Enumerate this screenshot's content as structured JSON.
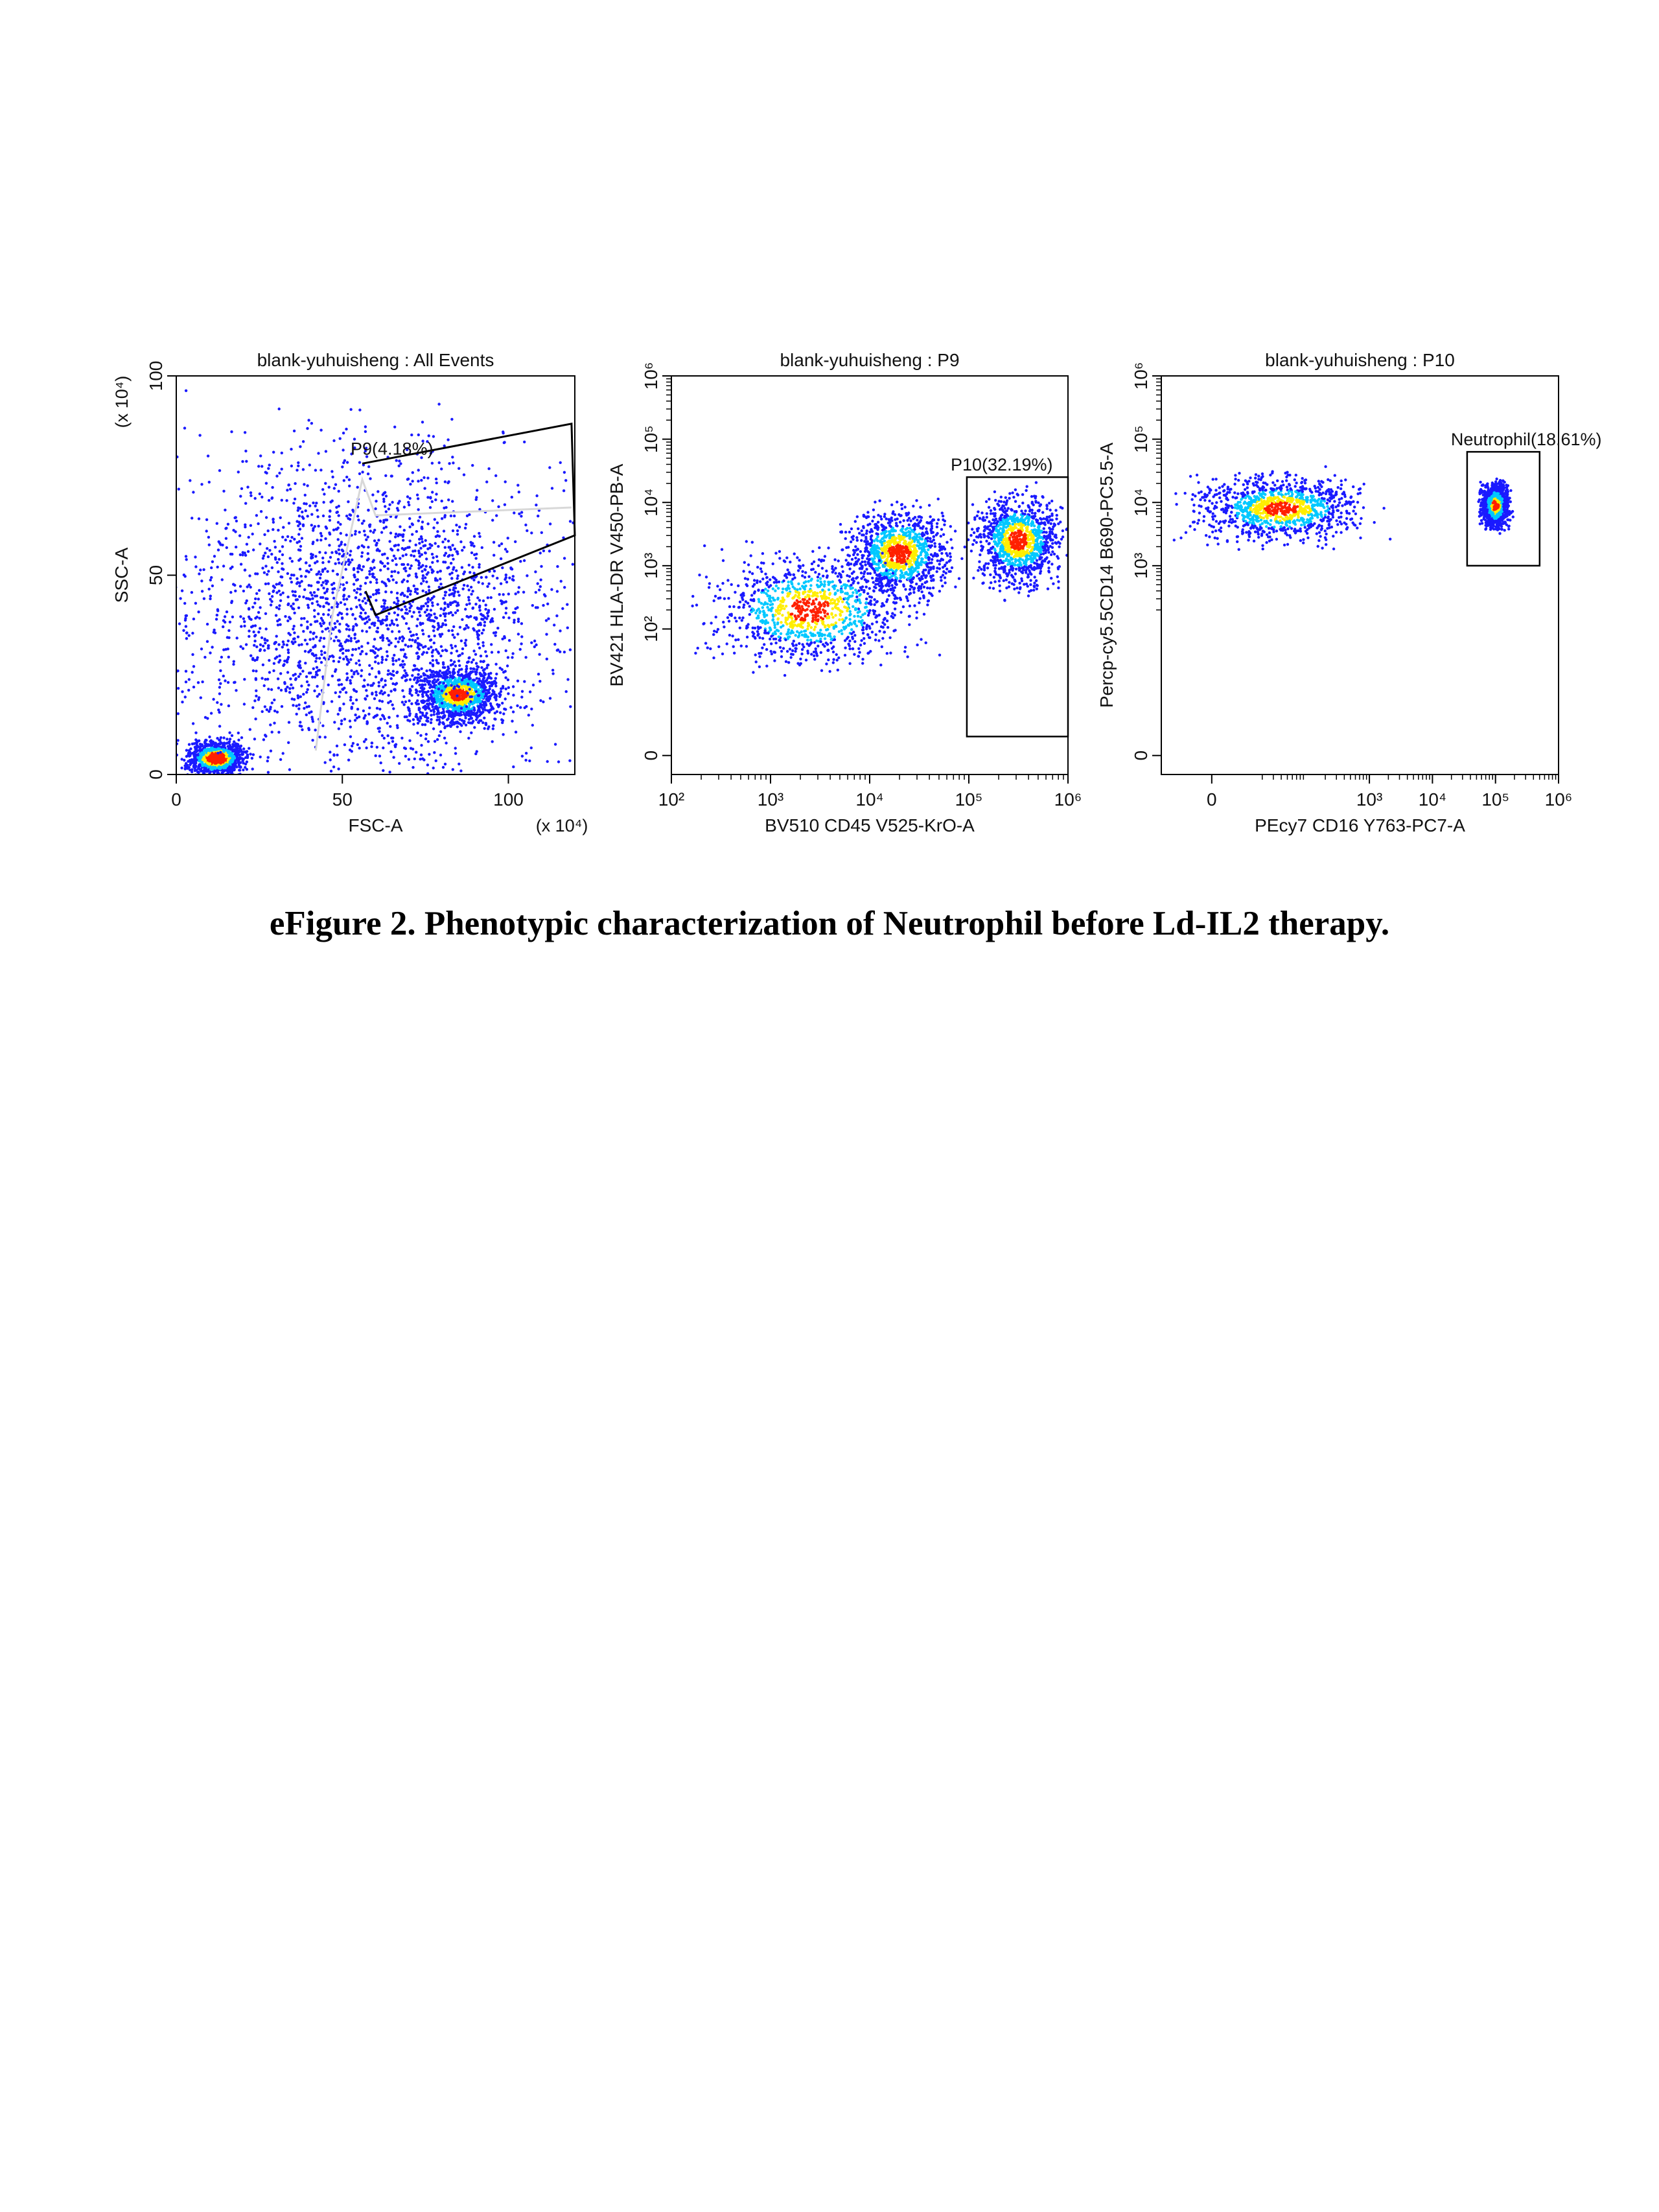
{
  "caption": "eFigure 2. Phenotypic characterization of Neutrophil before Ld-IL2 therapy.",
  "colors": {
    "density_low": "#1a1aff",
    "density_mid": "#00c8ff",
    "density_high": "#ffee00",
    "density_peak": "#ff2000",
    "gate": "#000000"
  },
  "chart_data": [
    {
      "type": "scatter",
      "title": "blank-yuhuisheng : All Events",
      "xlabel": "FSC-A",
      "ylabel": "SSC-A",
      "x_scale": "linear",
      "y_scale": "linear",
      "xlim": [
        0,
        120
      ],
      "ylim": [
        0,
        100
      ],
      "x_ticks": [
        "0",
        "50",
        "100"
      ],
      "x_tick_values": [
        0,
        50,
        100
      ],
      "y_ticks": [
        "0",
        "50",
        "100"
      ],
      "y_tick_values": [
        0,
        50,
        100
      ],
      "x_multiplier": "(x 10⁴)",
      "y_multiplier": "(x 10⁴)",
      "gates": [
        {
          "label": "P9(4.18%)",
          "shape": "polygon",
          "points": [
            [
              56,
              78
            ],
            [
              119,
              88
            ],
            [
              120,
              60
            ],
            [
              60,
              40
            ],
            [
              57,
              46
            ]
          ]
        },
        {
          "label": "",
          "shape": "polygon",
          "points": [
            [
              42,
              6
            ],
            [
              47,
              40
            ],
            [
              56,
              74
            ],
            [
              60,
              65
            ],
            [
              119,
              67
            ]
          ]
        }
      ],
      "populations": [
        {
          "name": "",
          "center": [
            12,
            4
          ],
          "spread": [
            6,
            3
          ],
          "peak": true
        },
        {
          "name": "",
          "center": [
            85,
            20
          ],
          "spread": [
            9,
            5
          ]
        },
        {
          "name": "",
          "center": [
            60,
            40
          ],
          "spread": [
            40,
            30
          ]
        }
      ]
    },
    {
      "type": "scatter",
      "title": "blank-yuhuisheng : P9",
      "xlabel": "BV510 CD45 V525-KrO-A",
      "ylabel": "BV421 HLA-DR V450-PB-A",
      "x_scale": "log",
      "y_scale": "log",
      "xlim": [
        2,
        6
      ],
      "ylim": [
        -0.3,
        6
      ],
      "x_ticks": [
        "10²",
        "10³",
        "10⁴",
        "10⁵",
        "10⁶"
      ],
      "x_tick_values": [
        2,
        3,
        4,
        5,
        6
      ],
      "y_ticks": [
        "0",
        "10²",
        "10³",
        "10⁴",
        "10⁵",
        "10⁶"
      ],
      "y_tick_values": [
        0,
        2,
        3,
        4,
        5,
        6
      ],
      "gates": [
        {
          "label": "P10(32.19%)",
          "shape": "rect",
          "x": [
            4.98,
            6.0
          ],
          "y": [
            0.3,
            4.4
          ]
        }
      ],
      "populations": [
        {
          "name": "",
          "center": [
            4.3,
            3.2
          ],
          "spread": [
            0.35,
            0.5
          ]
        },
        {
          "name": "",
          "center": [
            5.5,
            3.4
          ],
          "spread": [
            0.3,
            0.5
          ]
        },
        {
          "name": "",
          "center": [
            3.4,
            2.3
          ],
          "spread": [
            0.7,
            0.6
          ]
        }
      ]
    },
    {
      "type": "scatter",
      "title": "blank-yuhuisheng : P10",
      "xlabel": "PEcy7 CD16 Y763-PC7-A",
      "ylabel": "Percp-cy5.5CD14 B690-PC5.5-A",
      "x_scale": "log",
      "y_scale": "log",
      "xlim": [
        -0.3,
        6
      ],
      "ylim": [
        -0.3,
        6
      ],
      "x_ticks": [
        "0",
        "10³",
        "10⁴",
        "10⁵",
        "10⁶"
      ],
      "x_tick_values": [
        0.5,
        3,
        4,
        5,
        6
      ],
      "y_ticks": [
        "0",
        "10³",
        "10⁴",
        "10⁵",
        "10⁶"
      ],
      "y_tick_values": [
        0,
        3,
        4,
        5,
        6
      ],
      "gates": [
        {
          "label": "Neutrophil(18.61%)",
          "shape": "rect",
          "x": [
            4.55,
            5.7
          ],
          "y": [
            3.0,
            4.8
          ]
        }
      ],
      "populations": [
        {
          "name": "",
          "center": [
            1.6,
            3.9
          ],
          "spread": [
            0.9,
            0.35
          ]
        },
        {
          "name": "",
          "center": [
            5.0,
            3.95
          ],
          "spread": [
            0.15,
            0.25
          ]
        }
      ]
    }
  ]
}
